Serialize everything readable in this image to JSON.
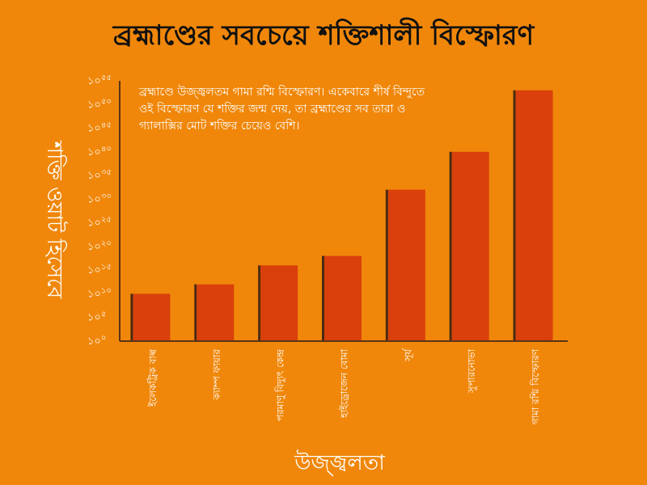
{
  "chart_data": {
    "type": "bar",
    "title": "ব্রহ্মাণ্ডের সবচেয়ে শক্তিশালী বিস্ফোরণ",
    "xlabel": "উজ্জ্বলতা",
    "ylabel": "শক্তি ওয়াট হিসেবে",
    "annotation": "ব্রহ্মাণ্ডে উজ্জ্বলতম গামা রশ্মি বিস্ফোরণ। একেবারে শীর্ষ বিন্দুতে ওই বিস্ফোরণ যে শক্তির জন্ম দেয়, তা ব্রহ্মাণ্ডের সব তারা ও গ্যালাক্সির মোট শক্তির চেয়েও বেশি।",
    "y_scale": "log",
    "ylim": [
      0,
      55
    ],
    "y_ticks": [
      {
        "base": "১০",
        "exp": "০"
      },
      {
        "base": "১০",
        "exp": "৫"
      },
      {
        "base": "১০",
        "exp": "১০"
      },
      {
        "base": "১০",
        "exp": "১৫"
      },
      {
        "base": "১০",
        "exp": "২০"
      },
      {
        "base": "১০",
        "exp": "২৫"
      },
      {
        "base": "১০",
        "exp": "৩০"
      },
      {
        "base": "১০",
        "exp": "৩৫"
      },
      {
        "base": "১০",
        "exp": "৪০"
      },
      {
        "base": "১০",
        "exp": "৪৫"
      },
      {
        "base": "১০",
        "exp": "৫০"
      },
      {
        "base": "১০",
        "exp": "৫৫"
      }
    ],
    "categories": [
      "ইলেকট্রিক বাল্ব",
      "ক্যাম্প ফায়ার",
      "পরমাণু বিদ্যুৎ কেন্দ্র",
      "হাইড্রোজেন বোমা",
      "সূর্য",
      "সুপারনোভা",
      "গামা রশ্মি বিস্ফোরণ"
    ],
    "values": [
      10000000000.0,
      1000000000000.0,
      1e+16,
      1e+18,
      1e+32,
      1e+40,
      1e+53
    ],
    "colors": {
      "bar": "#d9400b",
      "bar_edge": "#4a2a12",
      "axis": "#5a3418",
      "text": "#ffffff",
      "title": "#111111",
      "background": "#f0870a"
    }
  }
}
